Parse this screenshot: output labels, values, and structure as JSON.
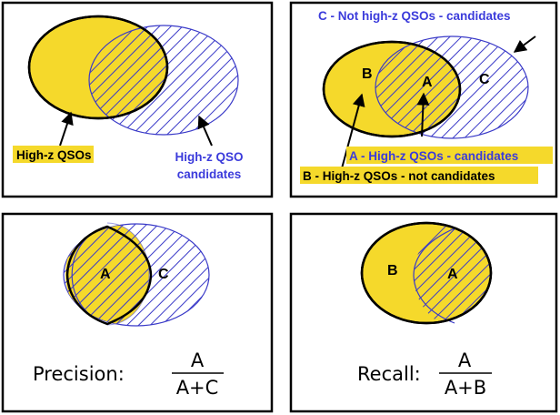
{
  "colors": {
    "yellow": "#f5d92b",
    "hatch_blue": "#3a3ac8",
    "label_blue": "#3b3bdb",
    "label_black": "#000000"
  },
  "panel1": {
    "true_label": "High-z QSOs",
    "candidate_label_line1": "High-z QSO",
    "candidate_label_line2": "candidates"
  },
  "panel2": {
    "region_b": "B",
    "region_a": "A",
    "region_c": "C",
    "label_c": "C - Not high-z QSOs - candidates",
    "label_a": "A - High-z QSOs - candidates",
    "label_b": "B - High-z QSOs - not candidates"
  },
  "panel3": {
    "region_a": "A",
    "region_c": "C",
    "metric_name": "Precision:",
    "numerator": "A",
    "denominator": "A+C"
  },
  "panel4": {
    "region_b": "B",
    "region_a": "A",
    "metric_name": "Recall:",
    "numerator": "A",
    "denominator": "A+B"
  }
}
